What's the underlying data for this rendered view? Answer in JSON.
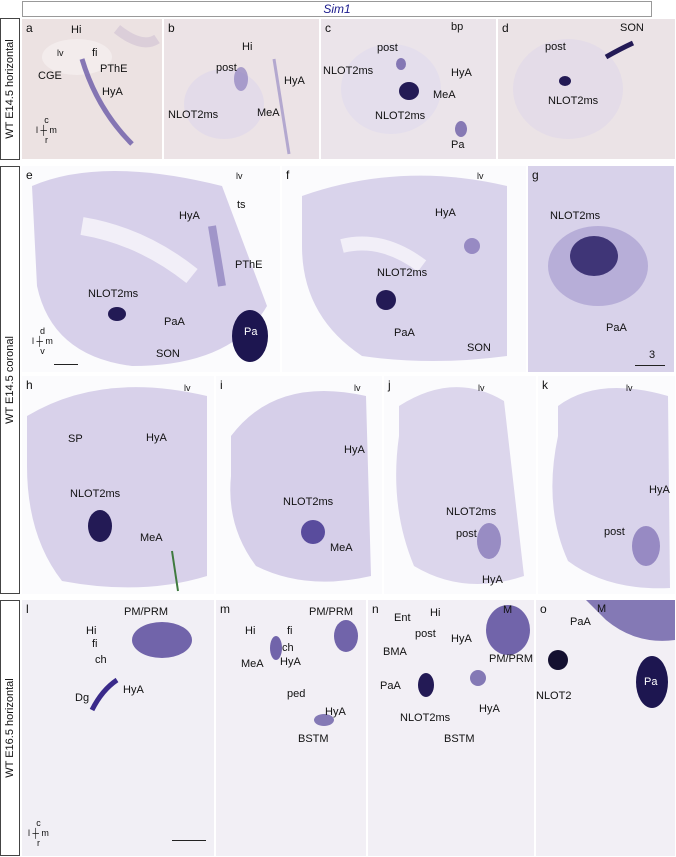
{
  "title": "Sim1",
  "rows": {
    "e14h": "WT  E14.5 horizontal",
    "e14c": "WT  E14.5  coronal",
    "e16h": "WT  E16.5 horizontal"
  },
  "panels": {
    "a": {
      "letter": "a",
      "labels": [
        "Hi",
        "lv",
        "fi",
        "CGE",
        "PThE",
        "HyA"
      ]
    },
    "b": {
      "letter": "b",
      "labels": [
        "Hi",
        "post",
        "HyA",
        "NLOT2ms",
        "MeA"
      ]
    },
    "c": {
      "letter": "c",
      "labels": [
        "bp",
        "post",
        "NLOT2ms",
        "HyA",
        "MeA",
        "NLOT2ms",
        "Pa"
      ]
    },
    "d": {
      "letter": "d",
      "labels": [
        "SON",
        "post",
        "NLOT2ms"
      ]
    },
    "e": {
      "letter": "e",
      "labels": [
        "lv",
        "ts",
        "HyA",
        "PThE",
        "NLOT2ms",
        "PaA",
        "Pa",
        "SON"
      ]
    },
    "f": {
      "letter": "f",
      "labels": [
        "lv",
        "HyA",
        "NLOT2ms",
        "PaA",
        "SON"
      ]
    },
    "g": {
      "letter": "g",
      "labels": [
        "NLOT2ms",
        "PaA"
      ],
      "number": "3"
    },
    "h": {
      "letter": "h",
      "labels": [
        "lv",
        "SP",
        "HyA",
        "NLOT2ms",
        "MeA"
      ]
    },
    "i": {
      "letter": "i",
      "labels": [
        "lv",
        "HyA",
        "NLOT2ms",
        "MeA"
      ]
    },
    "j": {
      "letter": "j",
      "labels": [
        "lv",
        "NLOT2ms",
        "post",
        "HyA"
      ]
    },
    "k": {
      "letter": "k",
      "labels": [
        "lv",
        "HyA",
        "post"
      ]
    },
    "l": {
      "letter": "l",
      "labels": [
        "PM/PRM",
        "Hi",
        "fi",
        "ch",
        "Dg",
        "HyA"
      ]
    },
    "m": {
      "letter": "m",
      "labels": [
        "PM/PRM",
        "Hi",
        "fi",
        "ch",
        "MeA",
        "HyA",
        "ped",
        "HyA",
        "BSTM"
      ]
    },
    "n": {
      "letter": "n",
      "labels": [
        "M",
        "Ent",
        "Hi",
        "post",
        "HyA",
        "BMA",
        "PM/PRM",
        "PaA",
        "NLOT2ms",
        "HyA",
        "BSTM"
      ]
    },
    "o": {
      "letter": "o",
      "labels": [
        "M",
        "PaA",
        "NLOT2",
        "Pa"
      ]
    }
  },
  "axes": {
    "horiz": {
      "top": "c",
      "left": "l",
      "right": "m",
      "bottom": "r"
    },
    "coronal": {
      "top": "d",
      "left": "l",
      "right": "m",
      "bottom": "v"
    }
  },
  "colors": {
    "stain": "#3a2a8a",
    "tissue": "#e9e2ee",
    "tissue_pink": "#f0dcdc",
    "tissue_blue": "#d6d0ea"
  }
}
